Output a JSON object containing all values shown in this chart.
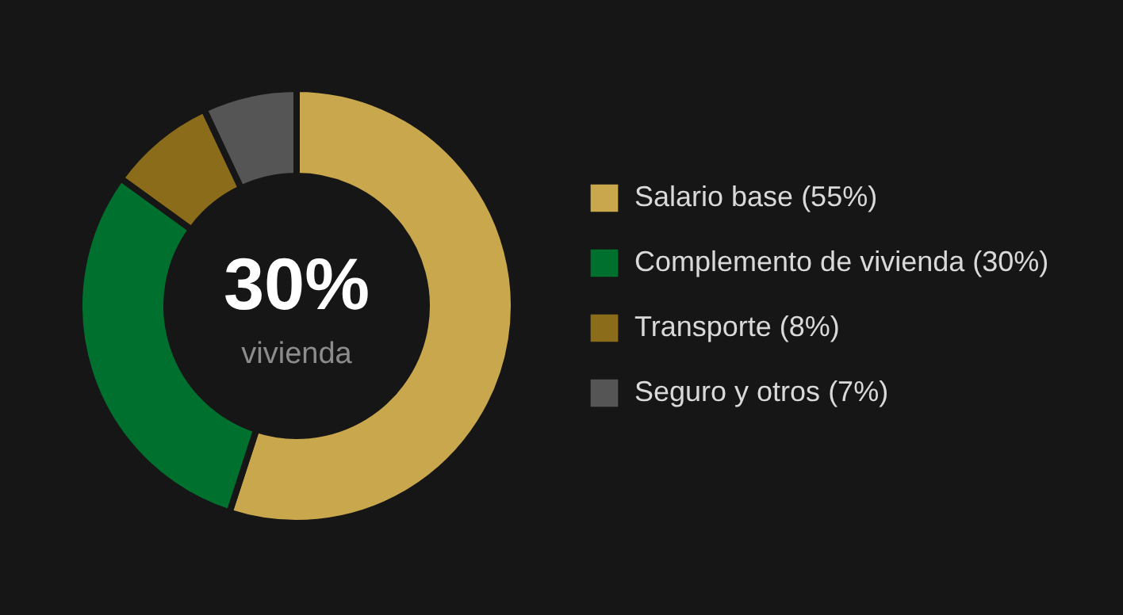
{
  "chart_data": {
    "type": "donut",
    "categories": [
      "Salario base (55%)",
      "Complemento de vivienda (30%)",
      "Transporte (8%)",
      "Seguro y otros (7%)"
    ],
    "values": [
      55,
      30,
      8,
      7
    ],
    "colors": [
      "#c9a74c",
      "#00702e",
      "#8b6c1a",
      "#555555"
    ],
    "annotations": [
      "30%",
      "vivienda"
    ],
    "legend": "right"
  }
}
